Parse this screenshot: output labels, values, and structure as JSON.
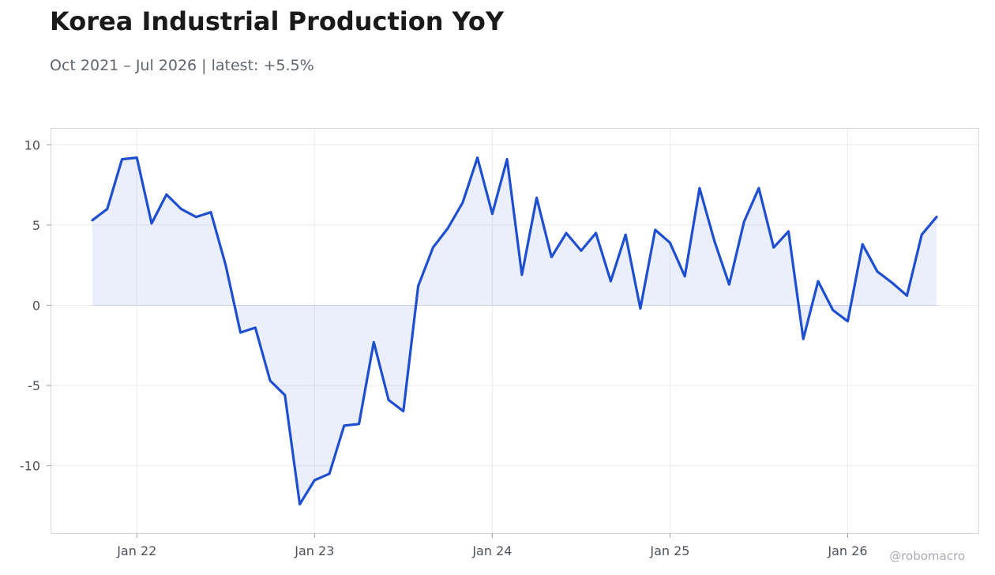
{
  "chart_data": {
    "type": "area",
    "title": "Korea Industrial Production YoY",
    "subtitle": "Oct 2021 – Jul 2026 | latest: +5.5%",
    "watermark": "@robomacro",
    "xlabel": "",
    "ylabel": "",
    "ylim": [
      -14.2,
      11
    ],
    "yticks": [
      10,
      5,
      0,
      -5,
      -10
    ],
    "ytick_labels": [
      "10",
      "5",
      "0",
      "-5",
      "-10"
    ],
    "xticks": [
      "2022-01",
      "2023-01",
      "2024-01",
      "2025-01",
      "2026-01"
    ],
    "xtick_labels": [
      "Jan 22",
      "Jan 23",
      "Jan 24",
      "Jan 25",
      "Jan 26"
    ],
    "grid": true,
    "colors": {
      "line": "#1f4fd1",
      "fill": "#1f4fd1",
      "grid": "#ececec",
      "frame": "#d9d9d9"
    },
    "x": [
      "2021-10",
      "2021-11",
      "2021-12",
      "2022-01",
      "2022-02",
      "2022-03",
      "2022-04",
      "2022-05",
      "2022-06",
      "2022-07",
      "2022-08",
      "2022-09",
      "2022-10",
      "2022-11",
      "2022-12",
      "2023-01",
      "2023-02",
      "2023-03",
      "2023-04",
      "2023-05",
      "2023-06",
      "2023-07",
      "2023-08",
      "2023-09",
      "2023-10",
      "2023-11",
      "2023-12",
      "2024-01",
      "2024-02",
      "2024-03",
      "2024-04",
      "2024-05",
      "2024-06",
      "2024-07",
      "2024-08",
      "2024-09",
      "2024-10",
      "2024-11",
      "2024-12",
      "2025-01",
      "2025-02",
      "2025-03",
      "2025-04",
      "2025-05",
      "2025-06",
      "2025-07",
      "2025-08",
      "2025-09",
      "2025-10",
      "2025-11",
      "2025-12",
      "2026-01",
      "2026-02",
      "2026-03",
      "2026-04",
      "2026-05",
      "2026-06",
      "2026-07"
    ],
    "series": [
      {
        "values": [
          5.3,
          6.0,
          9.1,
          9.2,
          5.1,
          6.9,
          6.0,
          5.5,
          5.8,
          2.5,
          -1.7,
          -1.4,
          -4.7,
          -5.6,
          -12.4,
          -10.9,
          -10.5,
          -7.5,
          -7.4,
          -2.3,
          -5.9,
          -6.6,
          1.2,
          3.6,
          4.8,
          6.4,
          9.2,
          5.7,
          9.1,
          1.9,
          6.7,
          3.0,
          4.5,
          3.4,
          4.5,
          1.5,
          4.4,
          -0.2,
          4.7,
          3.9,
          1.8,
          7.3,
          4.0,
          1.3,
          5.2,
          7.3,
          3.6,
          4.6,
          -2.1,
          1.5,
          -0.3,
          -1.0,
          3.8,
          2.1,
          1.4,
          0.6,
          4.4,
          5.5
        ]
      }
    ]
  }
}
